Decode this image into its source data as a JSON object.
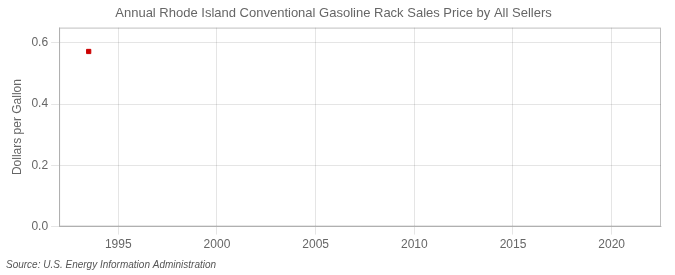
{
  "chart_data": {
    "type": "scatter",
    "title": "Annual Rhode Island Conventional Gasoline Rack Sales Price by All Sellers",
    "ylabel": "Dollars per Gallon",
    "annotations": [
      "Source: U.S. Energy Information Administration"
    ],
    "x": [
      1993.5
    ],
    "values": [
      0.572
    ],
    "color": "#CC0000",
    "marker": "square",
    "xlim": [
      1992.0,
      2022.5
    ],
    "ylim": [
      0.0,
      0.65
    ],
    "xticks": [
      1995,
      2000,
      2005,
      2010,
      2015,
      2020
    ],
    "yticks": [
      {
        "value": 0.0,
        "label": "0.0"
      },
      0.2,
      0.4,
      0.6
    ],
    "grid": true
  }
}
